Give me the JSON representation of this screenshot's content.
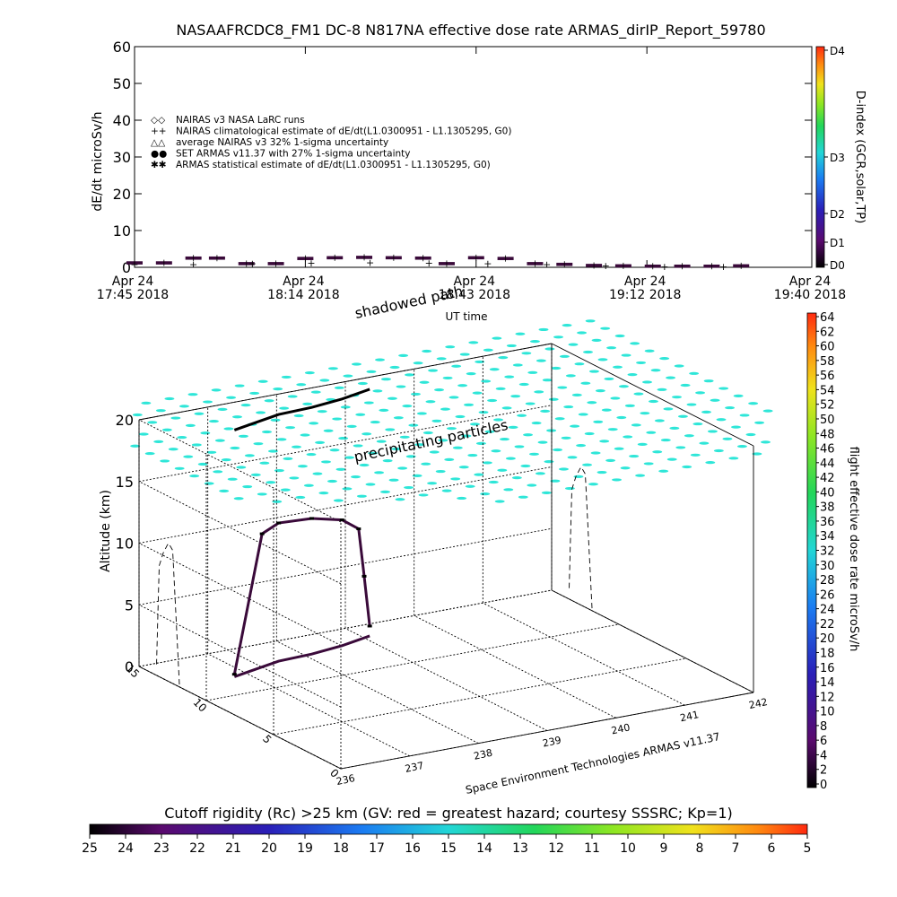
{
  "title": "NASAAFRCDC8_FM1 DC-8    N817NA effective dose rate ARMAS_dirIP_Report_59780",
  "chart_data": [
    {
      "type": "scatter",
      "ylabel": "dE/dt microSv/h",
      "xlabel": "UT time",
      "ylim": [
        0,
        60
      ],
      "y_ticks": [
        "0",
        "10",
        "20",
        "30",
        "40",
        "50",
        "60"
      ],
      "x_ticks": [
        {
          "line1": "Apr 24",
          "line2": "17:45 2018"
        },
        {
          "line1": "Apr 24",
          "line2": "18:14 2018"
        },
        {
          "line1": "Apr 24",
          "line2": "18:43 2018"
        },
        {
          "line1": "Apr 24",
          "line2": "19:12 2018"
        },
        {
          "line1": "Apr 24",
          "line2": "19:40 2018"
        }
      ],
      "right_axis_label": "D-index (GCR,solar,TP)",
      "right_axis_ticks": [
        "D4",
        "D3",
        "D2",
        "D1",
        "D0"
      ],
      "legend": [
        {
          "symbol": "◇◇",
          "label": "NAIRAS v3 NASA LaRC runs",
          "color": "#000000"
        },
        {
          "symbol": "++",
          "label": "NAIRAS climatological estimate of dE/dt(L1.0300951 - L1.1305295, G0)",
          "color": "#000000"
        },
        {
          "symbol": "△△",
          "label": "average NAIRAS v3 32% 1-sigma uncertainty",
          "color": "#000000"
        },
        {
          "symbol": "●●",
          "label": "SET ARMAS v11.37 with 27% 1-sigma uncertainty",
          "color": "#1a2cff"
        },
        {
          "symbol": "✱✱",
          "label": "ARMAS statistical estimate of dE/dt(L1.0300951 - L1.1305295, G0)",
          "color": "#000000"
        }
      ],
      "legend_position": "upper-left",
      "series": [
        {
          "name": "SET ARMAS v11.37 with 27% 1-sigma uncertainty",
          "points": [
            {
              "t": "17:45",
              "v": 1.2
            },
            {
              "t": "17:50",
              "v": 1.2
            },
            {
              "t": "17:55",
              "v": 2.5
            },
            {
              "t": "17:59",
              "v": 2.5
            },
            {
              "t": "18:04",
              "v": 1.0
            },
            {
              "t": "18:09",
              "v": 1.0
            },
            {
              "t": "18:14",
              "v": 2.4
            },
            {
              "t": "18:19",
              "v": 2.6
            },
            {
              "t": "18:24",
              "v": 2.7
            },
            {
              "t": "18:29",
              "v": 2.6
            },
            {
              "t": "18:34",
              "v": 2.5
            },
            {
              "t": "18:38",
              "v": 1.0
            },
            {
              "t": "18:43",
              "v": 2.6
            },
            {
              "t": "18:48",
              "v": 2.4
            },
            {
              "t": "18:53",
              "v": 1.0
            },
            {
              "t": "18:58",
              "v": 0.8
            },
            {
              "t": "19:03",
              "v": 0.5
            },
            {
              "t": "19:08",
              "v": 0.4
            },
            {
              "t": "19:13",
              "v": 0.3
            },
            {
              "t": "19:18",
              "v": 0.3
            },
            {
              "t": "19:23",
              "v": 0.3
            },
            {
              "t": "19:28",
              "v": 0.4
            }
          ]
        },
        {
          "name": "NAIRAS climatological estimate of dE/dt(L1.0300951 - L1.1305295, G0)",
          "points": [
            {
              "t": "17:45",
              "v": 0.9
            },
            {
              "t": "17:55",
              "v": 0.9
            },
            {
              "t": "18:05",
              "v": 1.1
            },
            {
              "t": "18:15",
              "v": 1.2
            },
            {
              "t": "18:25",
              "v": 1.3
            },
            {
              "t": "18:35",
              "v": 1.2
            },
            {
              "t": "18:45",
              "v": 1.1
            },
            {
              "t": "18:55",
              "v": 0.8
            },
            {
              "t": "19:05",
              "v": 0.5
            },
            {
              "t": "19:15",
              "v": 0.3
            },
            {
              "t": "19:25",
              "v": 0.3
            }
          ]
        }
      ]
    },
    {
      "type": "scatter",
      "ylabel": "Altitude (km)",
      "zlim": [
        0,
        20
      ],
      "z_ticks": [
        "0",
        "5",
        "10",
        "15",
        "20"
      ],
      "lat_ticks": [
        "0",
        "5",
        "10",
        "15"
      ],
      "lon_ticks": [
        "236",
        "237",
        "238",
        "239",
        "240",
        "241",
        "242"
      ],
      "annotations": [
        "shadowed path",
        "precipitating particles"
      ],
      "credit": "Space Environment Technologies ARMAS v11.37",
      "right_colorbar": {
        "label": "flight effective dose rate microSv/h",
        "ticks": [
          "0",
          "2",
          "4",
          "6",
          "8",
          "10",
          "12",
          "14",
          "16",
          "18",
          "20",
          "22",
          "24",
          "26",
          "28",
          "30",
          "32",
          "34",
          "36",
          "38",
          "40",
          "42",
          "44",
          "46",
          "48",
          "50",
          "52",
          "54",
          "56",
          "58",
          "60",
          "62",
          "64"
        ]
      },
      "bottom_colorbar": {
        "label": "Cutoff rigidity (Rc) >25 km (GV: red = greatest hazard; courtesy SSSRC; Kp=1)",
        "ticks": [
          "25",
          "24",
          "23",
          "22",
          "21",
          "20",
          "19",
          "18",
          "17",
          "16",
          "15",
          "14",
          "13",
          "12",
          "11",
          "10",
          "9",
          "8",
          "7",
          "6",
          "5"
        ]
      },
      "flight_track": [
        {
          "lon": 236.8,
          "lat": 12.0,
          "alt": 0.2
        },
        {
          "lon": 237.3,
          "lat": 12.5,
          "alt": 10.8
        },
        {
          "lon": 237.6,
          "lat": 12.8,
          "alt": 11.2
        },
        {
          "lon": 238.1,
          "lat": 12.9,
          "alt": 11.0
        },
        {
          "lon": 238.6,
          "lat": 13.2,
          "alt": 10.2
        },
        {
          "lon": 238.9,
          "lat": 13.5,
          "alt": 9.0
        },
        {
          "lon": 239.0,
          "lat": 13.6,
          "alt": 5.0
        },
        {
          "lon": 239.1,
          "lat": 13.7,
          "alt": 0.8
        }
      ]
    }
  ]
}
